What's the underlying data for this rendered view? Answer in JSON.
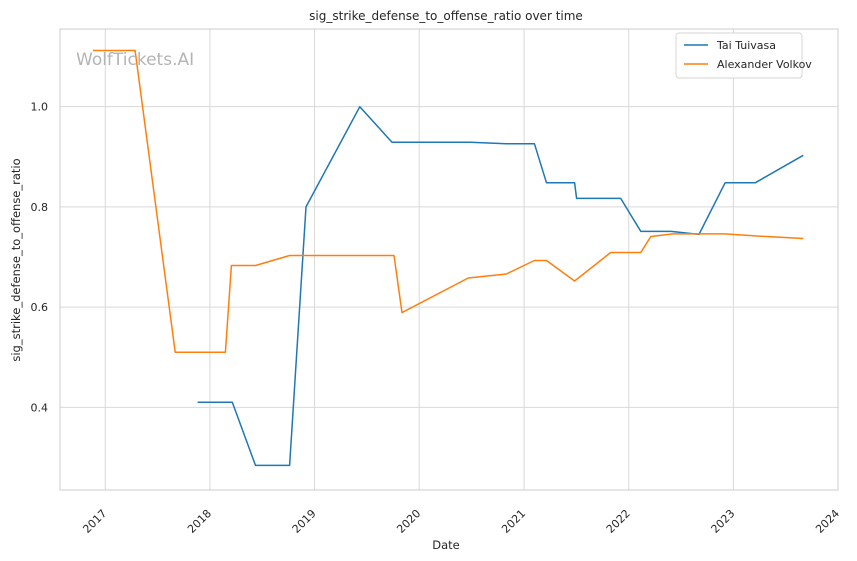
{
  "chart_data": {
    "type": "line",
    "title": "sig_strike_defense_to_offense_ratio over time",
    "xlabel": "Date",
    "ylabel": "sig_strike_defense_to_offense_ratio",
    "watermark": "WolfTickets.AI",
    "x_ticks": [
      "2017",
      "2018",
      "2019",
      "2020",
      "2021",
      "2022",
      "2023",
      "2024"
    ],
    "y_ticks": [
      "0.4",
      "0.6",
      "0.8",
      "1.0"
    ],
    "xlim": [
      "2016-07-27",
      "2024-01-01"
    ],
    "ylim": [
      0.235,
      1.155
    ],
    "grid": true,
    "legend_position": "top-right",
    "series": [
      {
        "name": "Tai Tuivasa",
        "color": "#1f77b4",
        "points": [
          [
            "2017-11-19",
            0.41
          ],
          [
            "2018-03-20",
            0.41
          ],
          [
            "2018-06-09",
            0.284
          ],
          [
            "2018-10-06",
            0.284
          ],
          [
            "2018-12-02",
            0.8
          ],
          [
            "2019-06-08",
            1.0
          ],
          [
            "2019-09-28",
            0.929
          ],
          [
            "2020-06-27",
            0.929
          ],
          [
            "2020-10-31",
            0.926
          ],
          [
            "2021-02-06",
            0.926
          ],
          [
            "2021-03-20",
            0.848
          ],
          [
            "2021-06-26",
            0.848
          ],
          [
            "2021-07-03",
            0.817
          ],
          [
            "2021-12-04",
            0.817
          ],
          [
            "2022-02-12",
            0.751
          ],
          [
            "2022-05-28",
            0.751
          ],
          [
            "2022-09-03",
            0.745
          ],
          [
            "2022-12-03",
            0.848
          ],
          [
            "2023-03-18",
            0.848
          ],
          [
            "2023-09-02",
            0.903
          ]
        ]
      },
      {
        "name": "Alexander Volkov",
        "color": "#ff7f0e",
        "points": [
          [
            "2016-11-19",
            1.112
          ],
          [
            "2017-04-15",
            1.112
          ],
          [
            "2017-09-02",
            0.51
          ],
          [
            "2018-02-24",
            0.51
          ],
          [
            "2018-03-17",
            0.683
          ],
          [
            "2018-06-09",
            0.683
          ],
          [
            "2018-10-06",
            0.703
          ],
          [
            "2019-10-05",
            0.703
          ],
          [
            "2019-11-02",
            0.589
          ],
          [
            "2020-06-20",
            0.658
          ],
          [
            "2020-10-31",
            0.666
          ],
          [
            "2021-02-06",
            0.693
          ],
          [
            "2021-03-20",
            0.693
          ],
          [
            "2021-06-26",
            0.652
          ],
          [
            "2021-10-30",
            0.709
          ],
          [
            "2022-02-12",
            0.709
          ],
          [
            "2022-03-19",
            0.741
          ],
          [
            "2022-06-04",
            0.746
          ],
          [
            "2022-12-03",
            0.746
          ],
          [
            "2023-03-18",
            0.742
          ],
          [
            "2023-09-02",
            0.737
          ]
        ]
      }
    ]
  }
}
